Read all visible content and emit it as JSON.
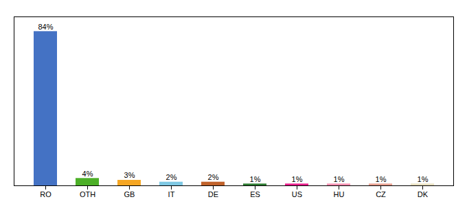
{
  "chart_data": {
    "type": "bar",
    "categories": [
      "RO",
      "OTH",
      "GB",
      "IT",
      "DE",
      "ES",
      "US",
      "HU",
      "CZ",
      "DK"
    ],
    "values": [
      84,
      4,
      3,
      2,
      2,
      1,
      1,
      1,
      1,
      1
    ],
    "value_labels": [
      "84%",
      "4%",
      "3%",
      "2%",
      "2%",
      "1%",
      "1%",
      "1%",
      "1%",
      "1%"
    ],
    "colors": [
      "#4472c4",
      "#4caf27",
      "#f5a623",
      "#7ec8e3",
      "#c0622b",
      "#2e7d32",
      "#e91e8c",
      "#f48fb1",
      "#e8a090",
      "#e8e0c0"
    ],
    "ylim": [
      0,
      92
    ],
    "data_labels": true,
    "tick_labels": "x",
    "grid": false
  }
}
